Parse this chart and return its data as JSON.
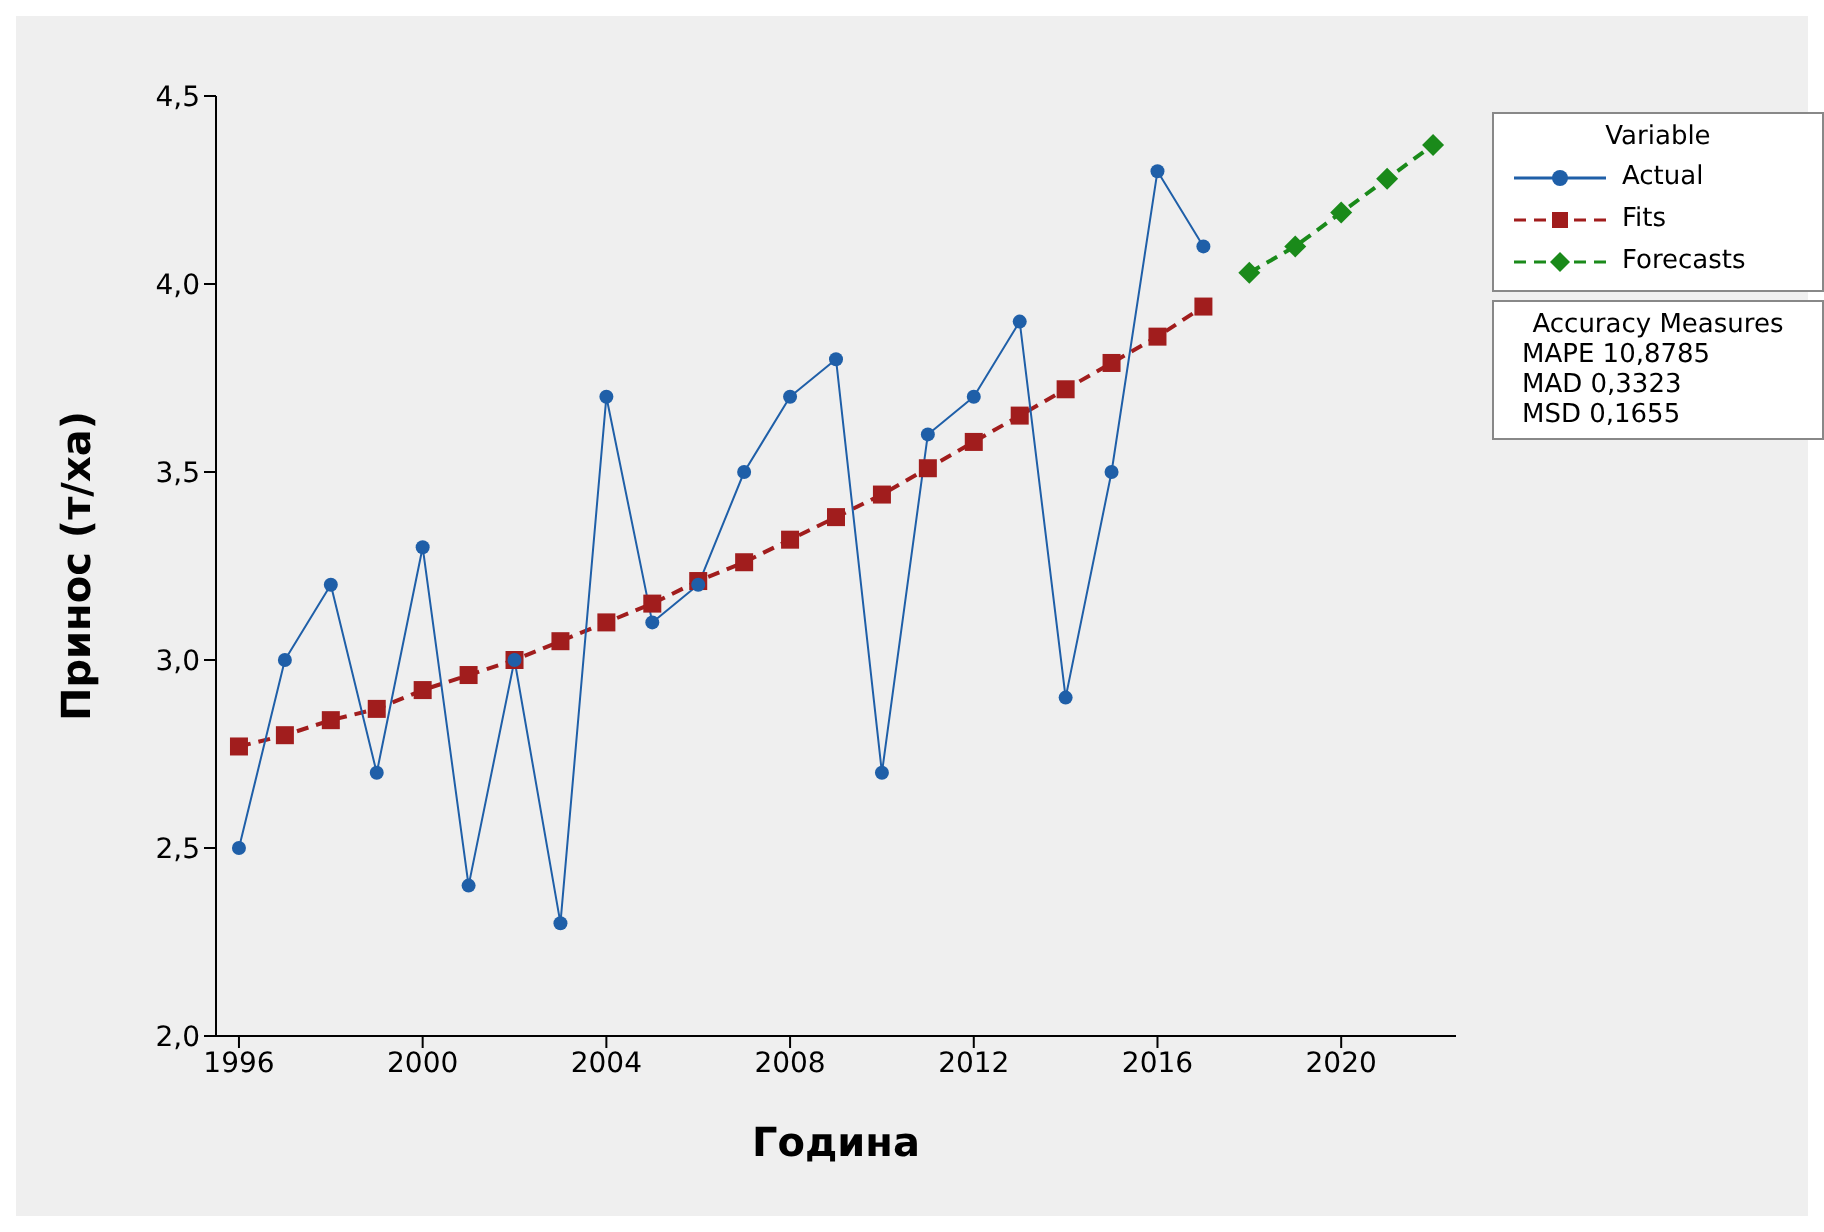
{
  "chart_data": {
    "type": "line",
    "xlabel": "Година",
    "ylabel": "Принос (т/ха)",
    "legend_title": "Variable",
    "legend": "right",
    "grid": false,
    "xlim": [
      1995.5,
      2022.5
    ],
    "xticks": [
      1996,
      2000,
      2004,
      2008,
      2012,
      2016,
      2020
    ],
    "ylim": [
      2.0,
      4.5
    ],
    "yticks": [
      {
        "value": 2.0,
        "label": "2,0"
      },
      {
        "value": 2.5,
        "label": "2,5"
      },
      {
        "value": 3.0,
        "label": "3,0"
      },
      {
        "value": 3.5,
        "label": "3,5"
      },
      {
        "value": 4.0,
        "label": "4,0"
      },
      {
        "value": 4.5,
        "label": "4,5"
      }
    ],
    "series": [
      {
        "name": "Actual",
        "color": "#1f5fa8",
        "marker": "circle",
        "line_style": "solid",
        "x": [
          1996,
          1997,
          1998,
          1999,
          2000,
          2001,
          2002,
          2003,
          2004,
          2005,
          2006,
          2007,
          2008,
          2009,
          2010,
          2011,
          2012,
          2013,
          2014,
          2015,
          2016,
          2017
        ],
        "values": [
          2.5,
          3.0,
          3.2,
          2.7,
          3.3,
          2.4,
          3.0,
          2.3,
          3.7,
          3.1,
          3.2,
          3.5,
          3.7,
          3.8,
          2.7,
          3.6,
          3.7,
          3.9,
          2.9,
          3.5,
          4.3,
          4.1
        ]
      },
      {
        "name": "Fits",
        "color": "#a11d1d",
        "marker": "square",
        "line_style": "dashed",
        "x": [
          1996,
          1997,
          1998,
          1999,
          2000,
          2001,
          2002,
          2003,
          2004,
          2005,
          2006,
          2007,
          2008,
          2009,
          2010,
          2011,
          2012,
          2013,
          2014,
          2015,
          2016,
          2017
        ],
        "values": [
          2.77,
          2.8,
          2.84,
          2.87,
          2.92,
          2.96,
          3.0,
          3.05,
          3.1,
          3.15,
          3.21,
          3.26,
          3.32,
          3.38,
          3.44,
          3.51,
          3.58,
          3.65,
          3.72,
          3.79,
          3.86,
          3.94
        ]
      },
      {
        "name": "Forecasts",
        "color": "#1a8a1a",
        "marker": "diamond",
        "line_style": "dashed",
        "x": [
          2018,
          2019,
          2020,
          2021,
          2022
        ],
        "values": [
          4.03,
          4.1,
          4.19,
          4.28,
          4.37
        ]
      }
    ],
    "annotations": [
      "Accuracy Measures",
      "MAPE 10,8785",
      "MAD 0,3323",
      "MSD 0,1655"
    ]
  }
}
